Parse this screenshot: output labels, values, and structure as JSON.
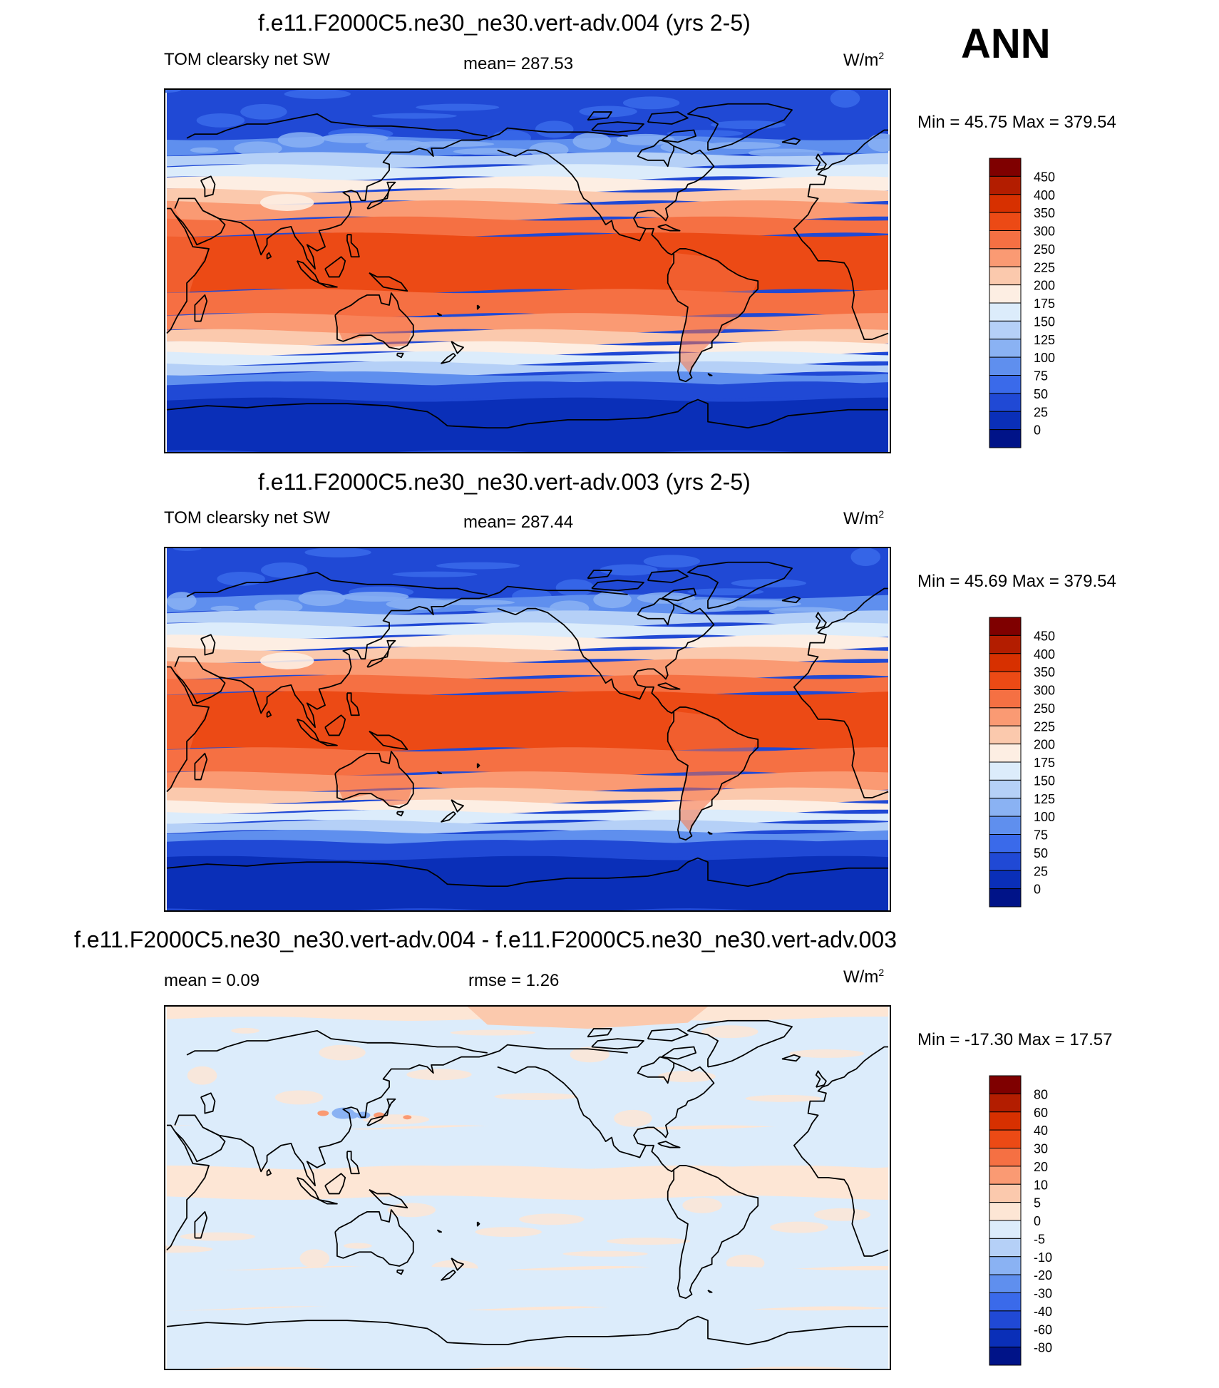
{
  "season": "ANN",
  "chart_data": [
    {
      "type": "heatmap",
      "title": "f.e11.F2000C5.ne30_ne30.vert-adv.004 (yrs 2-5)",
      "variable": "TOM clearsky net SW",
      "stat_text": "mean= 287.53",
      "mean": 287.53,
      "units": "W/m",
      "units_sup": "2",
      "minmax_text": "Min =  45.75 Max = 379.54",
      "min": 45.75,
      "max": 379.54,
      "colorbar_levels": [
        "450",
        "400",
        "350",
        "300",
        "250",
        "225",
        "200",
        "175",
        "150",
        "125",
        "100",
        "75",
        "50",
        "25",
        "0"
      ],
      "colors": [
        "#7f0000",
        "#b31d00",
        "#d73000",
        "#ec4a15",
        "#f57043",
        "#fa9a73",
        "#fbc9ad",
        "#fdeee3",
        "#dcecfb",
        "#b5d0f7",
        "#8ab2f3",
        "#5f8fee",
        "#3a6aea",
        "#2049d5",
        "#0a2fb8",
        "#001388"
      ],
      "bands": [
        {
          "lat": [
            66,
            90
          ],
          "level": 13,
          "texture": 12
        },
        {
          "lat": [
            58,
            66
          ],
          "level": 11,
          "texture": 10
        },
        {
          "lat": [
            52,
            58
          ],
          "level": 9
        },
        {
          "lat": [
            46,
            52
          ],
          "level": 8
        },
        {
          "lat": [
            40,
            46
          ],
          "level": 7
        },
        {
          "lat": [
            34,
            40
          ],
          "level": 6
        },
        {
          "lat": [
            26,
            34
          ],
          "level": 5
        },
        {
          "lat": [
            18,
            26
          ],
          "level": 4
        },
        {
          "lat": [
            -10,
            18
          ],
          "level": 3
        },
        {
          "lat": [
            -22,
            -10
          ],
          "level": 4
        },
        {
          "lat": [
            -30,
            -22
          ],
          "level": 5
        },
        {
          "lat": [
            -36,
            -30
          ],
          "level": 6
        },
        {
          "lat": [
            -41,
            -36
          ],
          "level": 7
        },
        {
          "lat": [
            -46,
            -41
          ],
          "level": 8
        },
        {
          "lat": [
            -51,
            -46
          ],
          "level": 9
        },
        {
          "lat": [
            -56,
            -51
          ],
          "level": 11
        },
        {
          "lat": [
            -64,
            -56
          ],
          "level": 13
        },
        {
          "lat": [
            -90,
            -64
          ],
          "level": 14
        }
      ],
      "greenland_level": 13
    },
    {
      "type": "heatmap",
      "title": "f.e11.F2000C5.ne30_ne30.vert-adv.003 (yrs 2-5)",
      "variable": "TOM clearsky net SW",
      "stat_text": "mean= 287.44",
      "mean": 287.44,
      "units": "W/m",
      "units_sup": "2",
      "minmax_text": "Min =  45.69 Max = 379.54",
      "min": 45.69,
      "max": 379.54,
      "colorbar_levels": [
        "450",
        "400",
        "350",
        "300",
        "250",
        "225",
        "200",
        "175",
        "150",
        "125",
        "100",
        "75",
        "50",
        "25",
        "0"
      ],
      "colors": [
        "#7f0000",
        "#b31d00",
        "#d73000",
        "#ec4a15",
        "#f57043",
        "#fa9a73",
        "#fbc9ad",
        "#fdeee3",
        "#dcecfb",
        "#b5d0f7",
        "#8ab2f3",
        "#5f8fee",
        "#3a6aea",
        "#2049d5",
        "#0a2fb8",
        "#001388"
      ],
      "bands": [
        {
          "lat": [
            66,
            90
          ],
          "level": 13,
          "texture": 12
        },
        {
          "lat": [
            58,
            66
          ],
          "level": 11,
          "texture": 10
        },
        {
          "lat": [
            52,
            58
          ],
          "level": 9
        },
        {
          "lat": [
            46,
            52
          ],
          "level": 8
        },
        {
          "lat": [
            40,
            46
          ],
          "level": 7
        },
        {
          "lat": [
            34,
            40
          ],
          "level": 6
        },
        {
          "lat": [
            26,
            34
          ],
          "level": 5
        },
        {
          "lat": [
            18,
            26
          ],
          "level": 4
        },
        {
          "lat": [
            -10,
            18
          ],
          "level": 3
        },
        {
          "lat": [
            -22,
            -10
          ],
          "level": 4
        },
        {
          "lat": [
            -30,
            -22
          ],
          "level": 5
        },
        {
          "lat": [
            -36,
            -30
          ],
          "level": 6
        },
        {
          "lat": [
            -41,
            -36
          ],
          "level": 7
        },
        {
          "lat": [
            -46,
            -41
          ],
          "level": 8
        },
        {
          "lat": [
            -51,
            -46
          ],
          "level": 9
        },
        {
          "lat": [
            -56,
            -51
          ],
          "level": 11
        },
        {
          "lat": [
            -64,
            -56
          ],
          "level": 13
        },
        {
          "lat": [
            -90,
            -64
          ],
          "level": 14
        }
      ],
      "greenland_level": 13
    },
    {
      "type": "heatmap",
      "title": "f.e11.F2000C5.ne30_ne30.vert-adv.004 - f.e11.F2000C5.ne30_ne30.vert-adv.003",
      "variable": "",
      "mean_text": "mean =   0.09",
      "mean": 0.09,
      "stat_text": "rmse =   1.26",
      "rmse": 1.26,
      "units": "W/m",
      "units_sup": "2",
      "minmax_text": "Min = -17.30 Max =  17.57",
      "min": -17.3,
      "max": 17.57,
      "colorbar_levels": [
        "80",
        "60",
        "40",
        "30",
        "20",
        "10",
        "5",
        "0",
        "-5",
        "-10",
        "-20",
        "-30",
        "-40",
        "-60",
        "-80"
      ],
      "colors": [
        "#7f0000",
        "#b31d00",
        "#d73000",
        "#ec4a15",
        "#f57043",
        "#fa9a73",
        "#fbc9ad",
        "#fde6d5",
        "#dcecfb",
        "#b5d0f7",
        "#8ab2f3",
        "#5f8fee",
        "#3a6aea",
        "#2049d5",
        "#0a2fb8",
        "#001388"
      ],
      "bands": [
        {
          "lat": [
            84,
            90
          ],
          "level": 7
        },
        {
          "lat": [
            30,
            84
          ],
          "level": 8,
          "texture": 7
        },
        {
          "lat": [
            10,
            30
          ],
          "level": 8
        },
        {
          "lat": [
            -5,
            10
          ],
          "level": 7
        },
        {
          "lat": [
            -40,
            -5
          ],
          "level": 8,
          "texture": 7
        },
        {
          "lat": [
            -60,
            -40
          ],
          "level": 8
        },
        {
          "lat": [
            -90,
            -60
          ],
          "level": 8
        }
      ],
      "polar_patch_level": 6,
      "greenland_level": 8
    }
  ]
}
